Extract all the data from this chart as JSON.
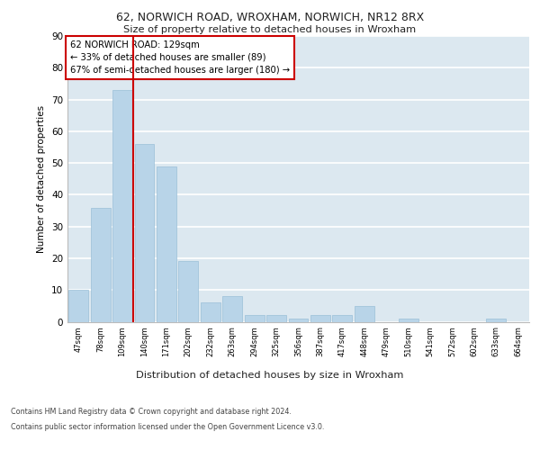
{
  "title_line1": "62, NORWICH ROAD, WROXHAM, NORWICH, NR12 8RX",
  "title_line2": "Size of property relative to detached houses in Wroxham",
  "xlabel": "Distribution of detached houses by size in Wroxham",
  "ylabel": "Number of detached properties",
  "categories": [
    "47sqm",
    "78sqm",
    "109sqm",
    "140sqm",
    "171sqm",
    "202sqm",
    "232sqm",
    "263sqm",
    "294sqm",
    "325sqm",
    "356sqm",
    "387sqm",
    "417sqm",
    "448sqm",
    "479sqm",
    "510sqm",
    "541sqm",
    "572sqm",
    "602sqm",
    "633sqm",
    "664sqm"
  ],
  "values": [
    10,
    36,
    73,
    56,
    49,
    19,
    6,
    8,
    2,
    2,
    1,
    2,
    2,
    5,
    0,
    1,
    0,
    0,
    0,
    1,
    0
  ],
  "bar_color": "#b8d4e8",
  "bar_edge_color": "#9bbfd8",
  "vline_color": "#cc0000",
  "vline_x_index": 2,
  "annotation_text": "62 NORWICH ROAD: 129sqm\n← 33% of detached houses are smaller (89)\n67% of semi-detached houses are larger (180) →",
  "annotation_box_facecolor": "#ffffff",
  "annotation_box_edgecolor": "#cc0000",
  "ylim": [
    0,
    90
  ],
  "yticks": [
    0,
    10,
    20,
    30,
    40,
    50,
    60,
    70,
    80,
    90
  ],
  "background_color": "#dce8f0",
  "grid_color": "#ffffff",
  "footer_line1": "Contains HM Land Registry data © Crown copyright and database right 2024.",
  "footer_line2": "Contains public sector information licensed under the Open Government Licence v3.0."
}
